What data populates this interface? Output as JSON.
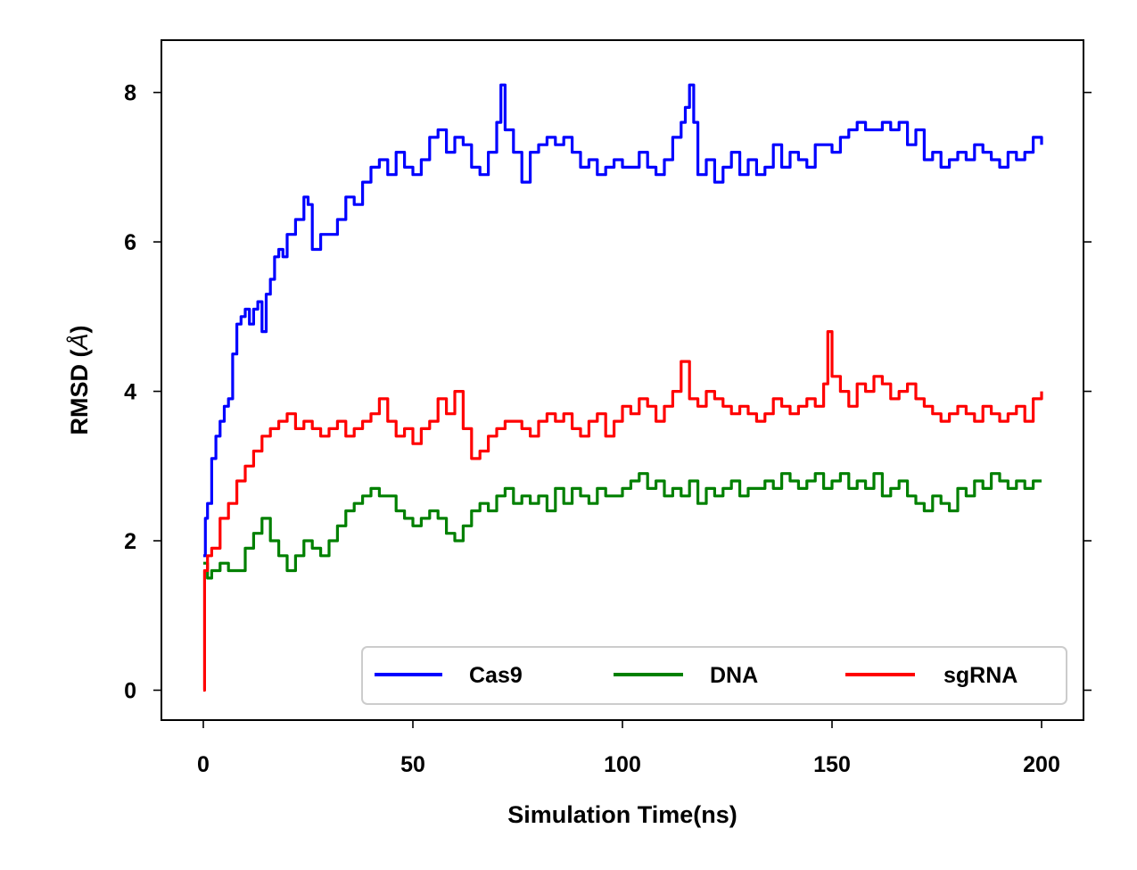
{
  "chart_data": {
    "type": "line",
    "title": "",
    "xlabel": "Simulation Time(ns)",
    "ylabel_text": "RMSD (",
    "ylabel_unit": "Å",
    "ylabel_close": ")",
    "xlim": [
      -10,
      210
    ],
    "ylim": [
      -0.4,
      8.7
    ],
    "xticks": [
      0,
      50,
      100,
      150,
      200
    ],
    "yticks": [
      0,
      2,
      4,
      6,
      8
    ],
    "grid": false,
    "legend_position": "lower-right",
    "legend_columns": 3,
    "series": [
      {
        "name": "Cas9",
        "color": "#0000ff",
        "x": [
          0,
          0.5,
          1,
          2,
          3,
          4,
          5,
          6,
          7,
          8,
          9,
          10,
          11,
          12,
          13,
          14,
          15,
          16,
          17,
          18,
          19,
          20,
          22,
          24,
          25,
          26,
          28,
          30,
          32,
          34,
          35,
          36,
          38,
          40,
          42,
          44,
          46,
          48,
          50,
          52,
          54,
          56,
          58,
          60,
          62,
          64,
          66,
          68,
          70,
          71,
          72,
          74,
          76,
          78,
          80,
          82,
          84,
          86,
          88,
          90,
          92,
          94,
          96,
          98,
          100,
          102,
          104,
          106,
          108,
          110,
          112,
          114,
          115,
          116,
          117,
          118,
          120,
          122,
          124,
          126,
          128,
          130,
          132,
          134,
          136,
          138,
          140,
          142,
          144,
          146,
          148,
          150,
          152,
          154,
          156,
          158,
          160,
          162,
          164,
          166,
          168,
          170,
          172,
          174,
          176,
          178,
          180,
          182,
          184,
          186,
          188,
          190,
          192,
          194,
          196,
          198,
          200
        ],
        "values": [
          1.8,
          2.3,
          2.5,
          3.1,
          3.4,
          3.6,
          3.8,
          3.9,
          4.5,
          4.9,
          5.0,
          5.1,
          4.9,
          5.1,
          5.2,
          4.8,
          5.3,
          5.5,
          5.8,
          5.9,
          5.8,
          6.1,
          6.3,
          6.6,
          6.5,
          5.9,
          6.1,
          6.1,
          6.3,
          6.6,
          6.6,
          6.5,
          6.8,
          7.0,
          7.1,
          6.9,
          7.2,
          7.0,
          6.9,
          7.1,
          7.4,
          7.5,
          7.2,
          7.4,
          7.3,
          7.0,
          6.9,
          7.2,
          7.6,
          8.1,
          7.5,
          7.2,
          6.8,
          7.2,
          7.3,
          7.4,
          7.3,
          7.4,
          7.2,
          7.0,
          7.1,
          6.9,
          7.0,
          7.1,
          7.0,
          7.0,
          7.2,
          7.0,
          6.9,
          7.1,
          7.4,
          7.6,
          7.8,
          8.1,
          7.6,
          6.9,
          7.1,
          6.8,
          7.0,
          7.2,
          6.9,
          7.1,
          6.9,
          7.0,
          7.3,
          7.0,
          7.2,
          7.1,
          7.0,
          7.3,
          7.3,
          7.2,
          7.4,
          7.5,
          7.6,
          7.5,
          7.5,
          7.6,
          7.5,
          7.6,
          7.3,
          7.5,
          7.1,
          7.2,
          7.0,
          7.1,
          7.2,
          7.1,
          7.3,
          7.2,
          7.1,
          7.0,
          7.2,
          7.1,
          7.2,
          7.4,
          7.3
        ]
      },
      {
        "name": "DNA",
        "color": "#008000",
        "x": [
          0,
          1,
          2,
          4,
          6,
          8,
          10,
          12,
          14,
          16,
          18,
          20,
          22,
          24,
          26,
          28,
          30,
          32,
          34,
          36,
          38,
          40,
          42,
          44,
          46,
          48,
          50,
          52,
          54,
          56,
          58,
          60,
          62,
          64,
          66,
          68,
          70,
          72,
          74,
          76,
          78,
          80,
          82,
          84,
          86,
          88,
          90,
          92,
          94,
          96,
          98,
          100,
          102,
          104,
          106,
          108,
          110,
          112,
          114,
          116,
          118,
          120,
          122,
          124,
          126,
          128,
          130,
          132,
          134,
          136,
          138,
          140,
          142,
          144,
          146,
          148,
          150,
          152,
          154,
          156,
          158,
          160,
          162,
          164,
          166,
          168,
          170,
          172,
          174,
          176,
          178,
          180,
          182,
          184,
          186,
          188,
          190,
          192,
          194,
          196,
          198,
          200
        ],
        "values": [
          1.7,
          1.5,
          1.6,
          1.7,
          1.6,
          1.6,
          1.9,
          2.1,
          2.3,
          2.0,
          1.8,
          1.6,
          1.8,
          2.0,
          1.9,
          1.8,
          2.0,
          2.2,
          2.4,
          2.5,
          2.6,
          2.7,
          2.6,
          2.6,
          2.4,
          2.3,
          2.2,
          2.3,
          2.4,
          2.3,
          2.1,
          2.0,
          2.2,
          2.4,
          2.5,
          2.4,
          2.6,
          2.7,
          2.5,
          2.6,
          2.5,
          2.6,
          2.4,
          2.7,
          2.5,
          2.7,
          2.6,
          2.5,
          2.7,
          2.6,
          2.6,
          2.7,
          2.8,
          2.9,
          2.7,
          2.8,
          2.6,
          2.7,
          2.6,
          2.8,
          2.5,
          2.7,
          2.6,
          2.7,
          2.8,
          2.6,
          2.7,
          2.7,
          2.8,
          2.7,
          2.9,
          2.8,
          2.7,
          2.8,
          2.9,
          2.7,
          2.8,
          2.9,
          2.7,
          2.8,
          2.7,
          2.9,
          2.6,
          2.7,
          2.8,
          2.6,
          2.5,
          2.4,
          2.6,
          2.5,
          2.4,
          2.7,
          2.6,
          2.8,
          2.7,
          2.9,
          2.8,
          2.7,
          2.8,
          2.7,
          2.8,
          2.8
        ]
      },
      {
        "name": "sgRNA",
        "color": "#ff0000",
        "x": [
          0,
          0.3,
          1,
          2,
          4,
          6,
          8,
          10,
          12,
          14,
          16,
          18,
          20,
          22,
          24,
          26,
          28,
          30,
          32,
          34,
          36,
          38,
          40,
          42,
          44,
          46,
          48,
          50,
          52,
          54,
          56,
          58,
          60,
          62,
          64,
          66,
          68,
          70,
          72,
          74,
          76,
          78,
          80,
          82,
          84,
          86,
          88,
          90,
          92,
          94,
          96,
          98,
          100,
          102,
          104,
          106,
          108,
          110,
          112,
          114,
          116,
          118,
          120,
          122,
          124,
          126,
          128,
          130,
          132,
          134,
          136,
          138,
          140,
          142,
          144,
          146,
          148,
          149,
          150,
          152,
          154,
          156,
          158,
          160,
          162,
          164,
          166,
          168,
          170,
          172,
          174,
          176,
          178,
          180,
          182,
          184,
          186,
          188,
          190,
          192,
          194,
          196,
          198,
          200
        ],
        "values": [
          0.0,
          1.6,
          1.8,
          1.9,
          2.3,
          2.5,
          2.8,
          3.0,
          3.2,
          3.4,
          3.5,
          3.6,
          3.7,
          3.5,
          3.6,
          3.5,
          3.4,
          3.5,
          3.6,
          3.4,
          3.5,
          3.6,
          3.7,
          3.9,
          3.6,
          3.4,
          3.5,
          3.3,
          3.5,
          3.6,
          3.9,
          3.7,
          4.0,
          3.5,
          3.1,
          3.2,
          3.4,
          3.5,
          3.6,
          3.6,
          3.5,
          3.4,
          3.6,
          3.7,
          3.6,
          3.7,
          3.5,
          3.4,
          3.6,
          3.7,
          3.4,
          3.6,
          3.8,
          3.7,
          3.9,
          3.8,
          3.6,
          3.8,
          4.0,
          4.4,
          3.9,
          3.8,
          4.0,
          3.9,
          3.8,
          3.7,
          3.8,
          3.7,
          3.6,
          3.7,
          3.9,
          3.8,
          3.7,
          3.8,
          3.9,
          3.8,
          4.1,
          4.8,
          4.2,
          4.0,
          3.8,
          4.1,
          4.0,
          4.2,
          4.1,
          3.9,
          4.0,
          4.1,
          3.9,
          3.8,
          3.7,
          3.6,
          3.7,
          3.8,
          3.7,
          3.6,
          3.8,
          3.7,
          3.6,
          3.7,
          3.8,
          3.6,
          3.9,
          4.0
        ]
      }
    ]
  }
}
